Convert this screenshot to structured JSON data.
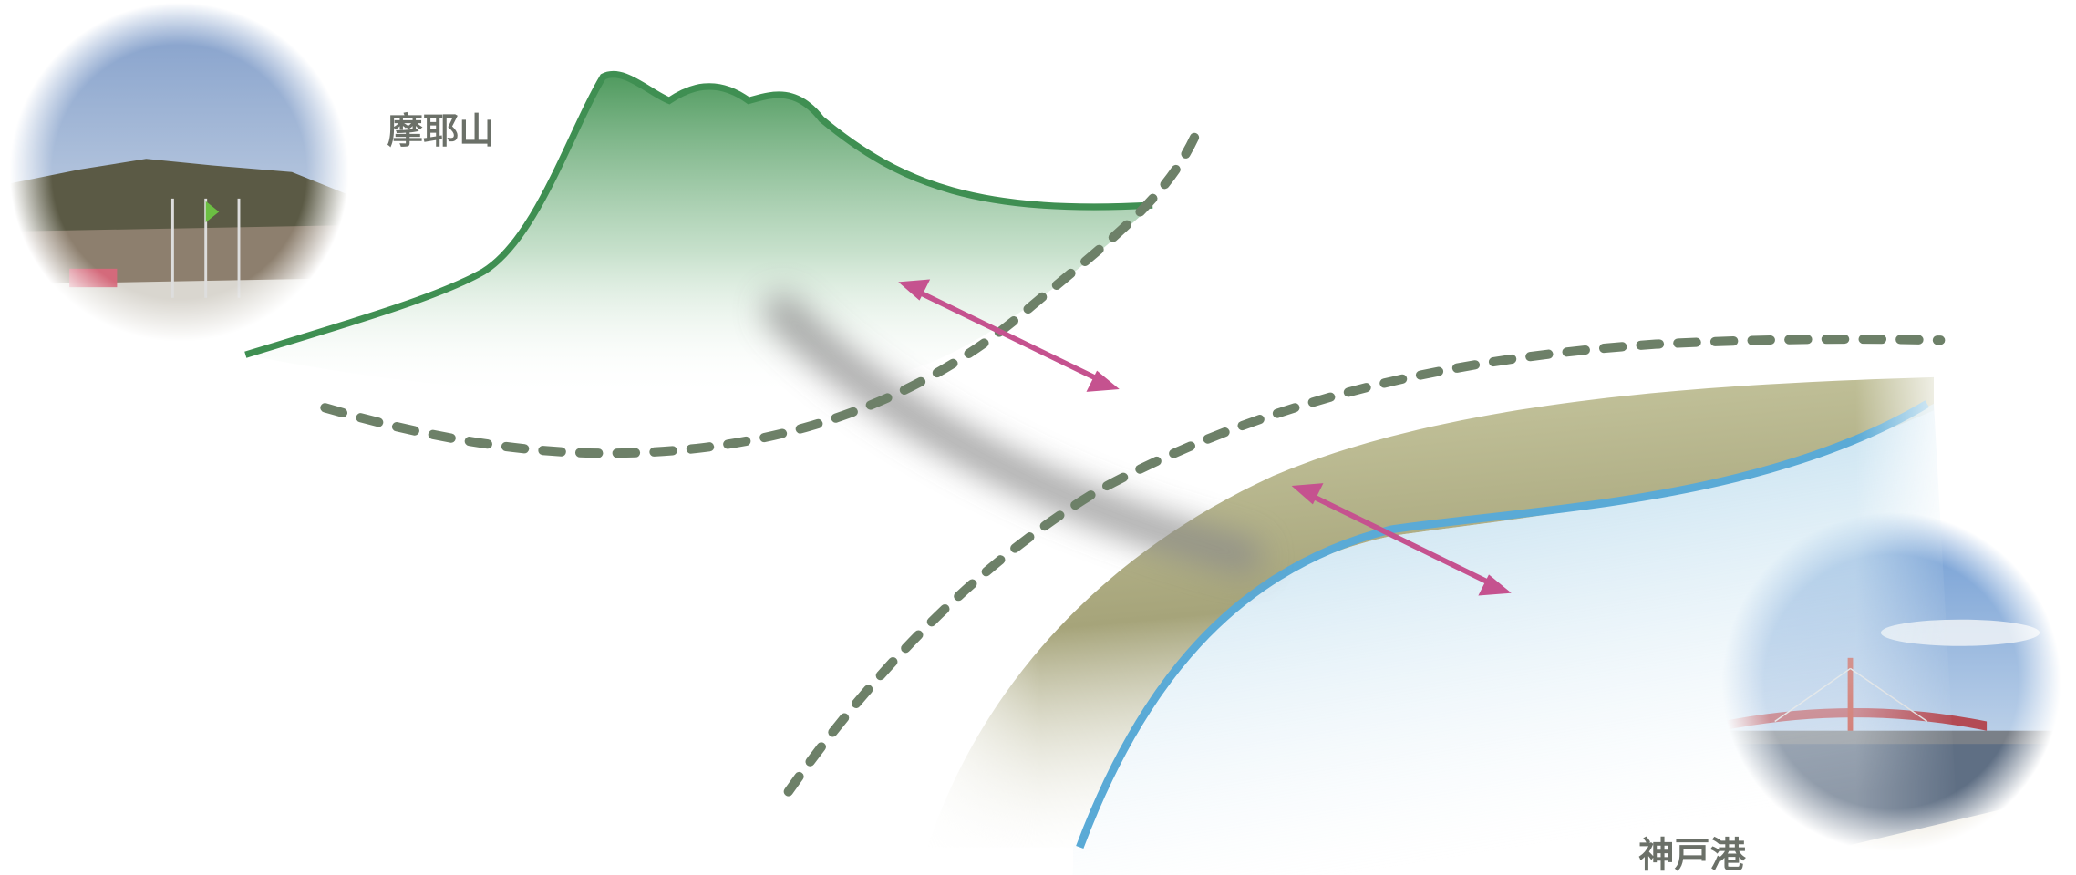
{
  "labels": {
    "mountain": "摩耶山",
    "port": "神戸港"
  }
}
